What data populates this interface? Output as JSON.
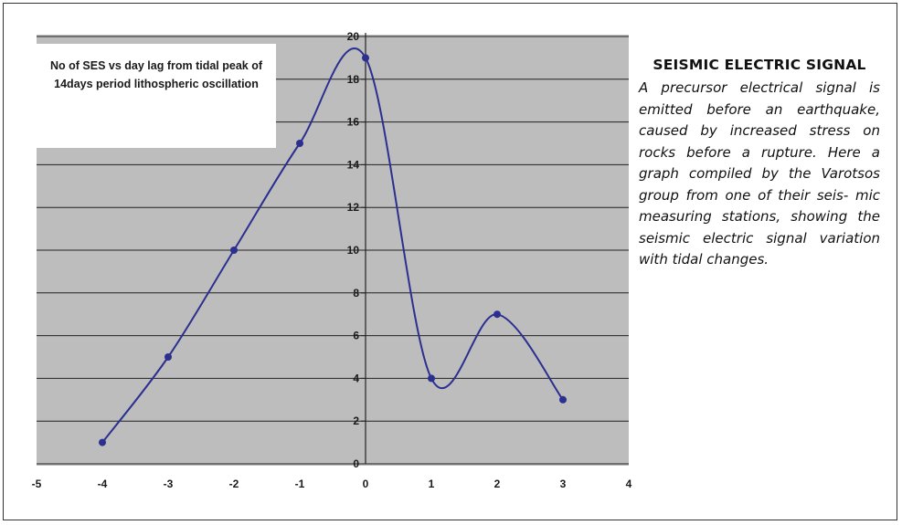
{
  "chart_data": {
    "type": "line",
    "title": "No of SES vs day lag from tidal peak of 14days period lithospheric oscillation",
    "xlabel": "",
    "ylabel": "",
    "x": [
      -4,
      -3,
      -2,
      -1,
      0,
      1,
      2,
      3
    ],
    "series": [
      {
        "values": [
          1,
          5,
          10,
          15,
          19,
          4,
          7,
          3
        ]
      }
    ],
    "xlim": [
      -5,
      4
    ],
    "ylim": [
      0,
      20
    ],
    "x_ticks": [
      "-5",
      "-4",
      "-3",
      "-2",
      "-1",
      "0",
      "1",
      "2",
      "3",
      "4"
    ],
    "y_ticks": [
      "0",
      "2",
      "4",
      "6",
      "8",
      "10",
      "12",
      "14",
      "16",
      "18",
      "20"
    ],
    "grid": "horizontal",
    "smoothed": true,
    "colors": {
      "plot_background": "#bdbdbd",
      "line": "#2b2f8f",
      "marker": "#2b2f8f",
      "gridline": "#222222"
    }
  },
  "sidebar": {
    "title": "SEISMIC ELECTRIC SIGNAL",
    "body": "A precursor electrical signal is emitted before an earthquake, caused by increased stress on rocks before a rupture. Here a graph compiled by the Varotsos group from one of their seis- mic measuring stations, showing the seismic electric signal variation with tidal changes."
  }
}
